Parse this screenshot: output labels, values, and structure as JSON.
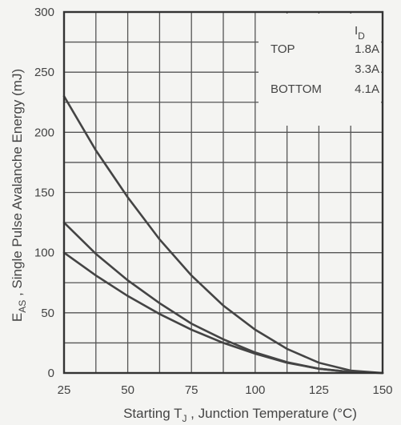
{
  "chart_data": {
    "type": "line",
    "xlabel": {
      "prefix": "Starting T",
      "sub": "J",
      "suffix": " , Junction Temperature  (",
      "unit": "°C",
      "close": ")"
    },
    "ylabel": {
      "prefix": "E",
      "sub": "AS",
      "suffix": " , Single Pulse Avalanche Energy  (mJ)"
    },
    "xlim": [
      25,
      150
    ],
    "ylim": [
      0,
      300
    ],
    "xticks": [
      25,
      50,
      75,
      100,
      125,
      150
    ],
    "yticks": [
      0,
      50,
      100,
      150,
      200,
      250,
      300
    ],
    "grid": true,
    "legend": {
      "header_prefix": "I",
      "header_sub": "D",
      "labels": [
        "TOP",
        "",
        "BOTTOM"
      ],
      "values": [
        "1.8A",
        "3.3A",
        "4.1A"
      ],
      "position": "top-right"
    },
    "series": [
      {
        "x": [
          25,
          37.5,
          50,
          62.5,
          75,
          87.5,
          100,
          112.5,
          125,
          137.5,
          150
        ],
        "values": [
          230,
          185,
          146,
          111,
          81,
          56,
          36,
          20,
          8.5,
          2,
          0
        ]
      },
      {
        "x": [
          25,
          37.5,
          50,
          62.5,
          75,
          87.5,
          100,
          112.5,
          125,
          137.5,
          150
        ],
        "values": [
          125,
          99,
          77,
          58,
          41,
          28,
          17,
          9,
          3.5,
          0.8,
          0
        ]
      },
      {
        "x": [
          25,
          37.5,
          50,
          62.5,
          75,
          87.5,
          100,
          112.5,
          125,
          137.5,
          150
        ],
        "values": [
          100,
          81,
          64,
          49,
          36,
          25,
          16,
          8.5,
          3.5,
          0.8,
          0
        ]
      }
    ]
  }
}
